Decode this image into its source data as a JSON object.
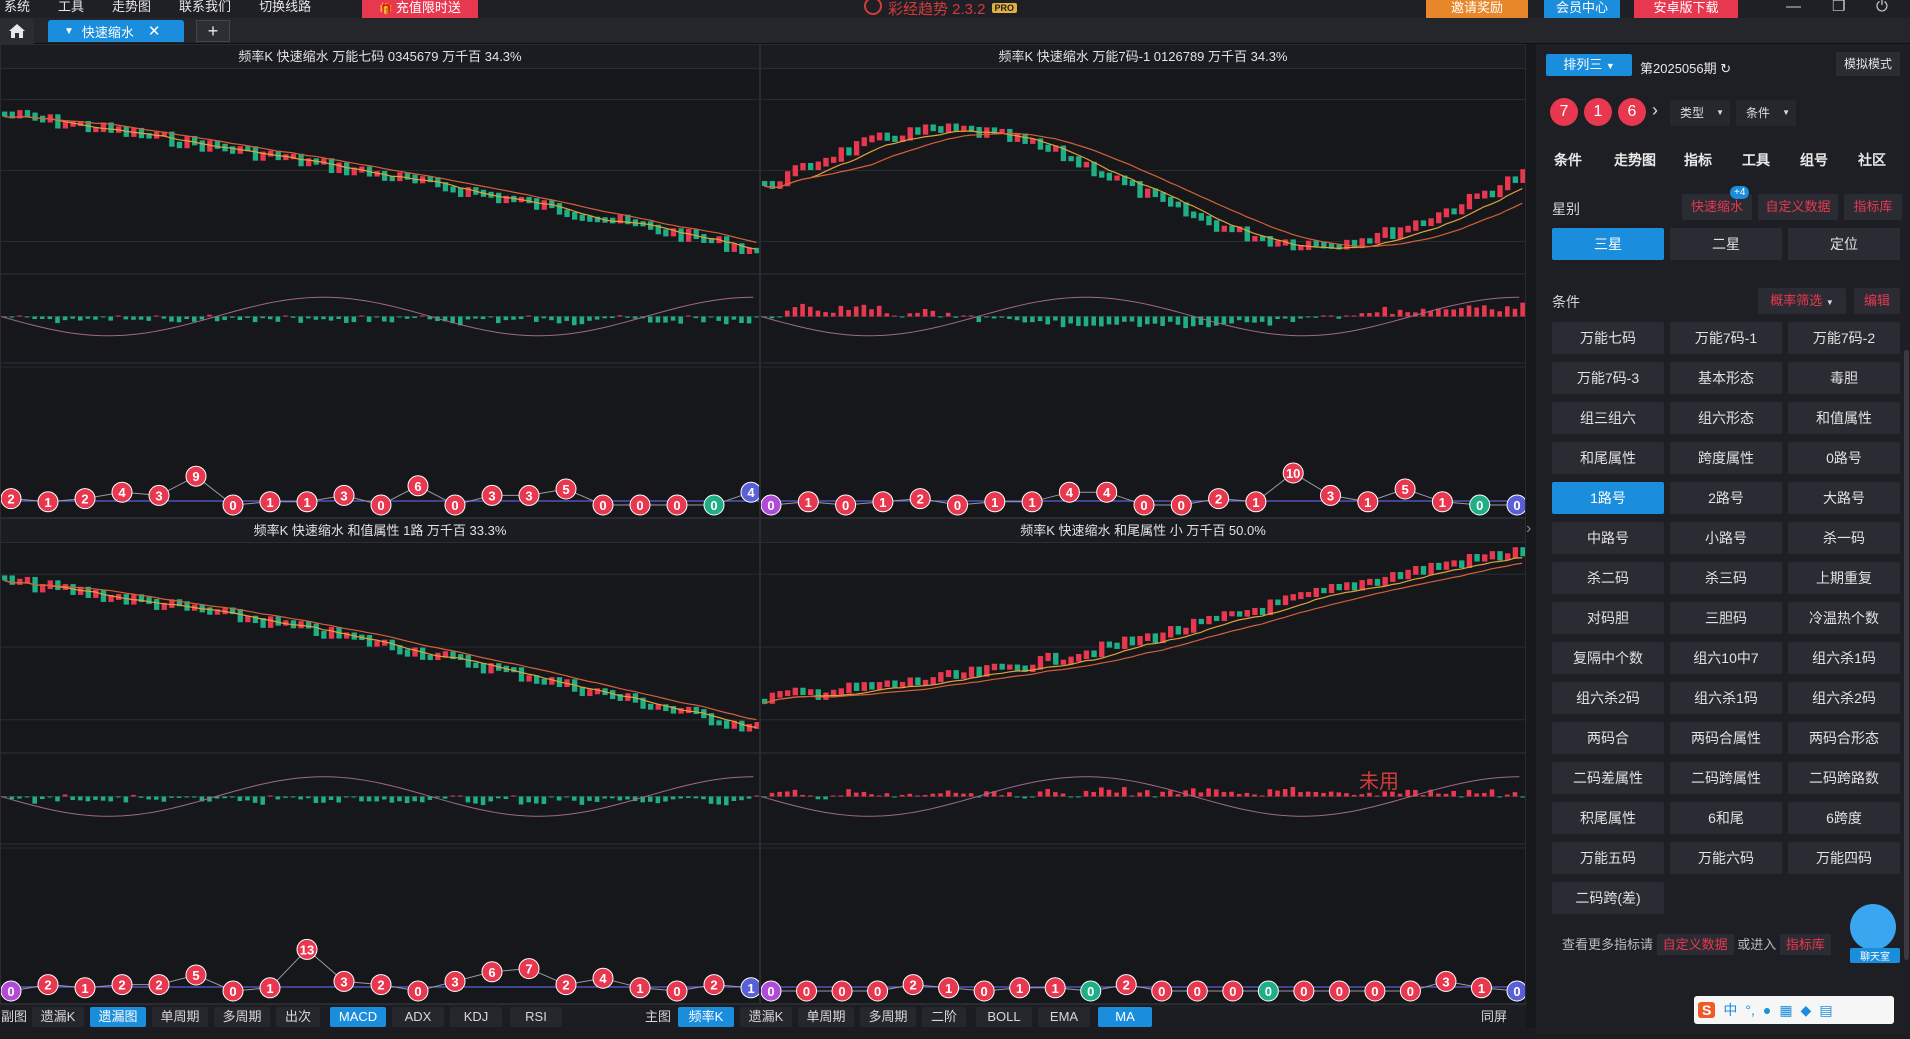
{
  "menu": [
    "系统",
    "工具",
    "走势图",
    "联系我们",
    "切换线路"
  ],
  "recharge": "充值限时送",
  "app_title": "彩经趋势 2.3.2",
  "pro_badge": "PRO",
  "invite": "邀请奖励",
  "member": "会员中心",
  "android": "安卓版下载",
  "tab_label": "快速缩水",
  "panels": [
    {
      "title": "频率K  快速缩水  万能七码 0345679  万千百  34.3%"
    },
    {
      "title": "频率K  快速缩水  万能7码-1 0126789  万千百  34.3%"
    },
    {
      "title": "频率K  快速缩水  和值属性 1路  万千百  33.3%"
    },
    {
      "title": "频率K  快速缩水  和尾属性 小  万千百  50.0%",
      "note": "未用"
    }
  ],
  "bottom_left": [
    "副图",
    "遗漏K",
    "遗漏图",
    "单周期",
    "多周期",
    "出次",
    "MACD",
    "ADX",
    "KDJ",
    "RSI"
  ],
  "bottom_right": [
    "主图",
    "频率K",
    "遗漏K",
    "单周期",
    "多周期",
    "二阶",
    "BOLL",
    "EMA",
    "MA"
  ],
  "fullscreen": "同屏",
  "colors": {
    "up": "#e8384f",
    "down": "#1fae86",
    "ma1": "#e0a23a",
    "ma2": "#d2603a",
    "accent": "#1a8ddc"
  },
  "sidebar": {
    "lottery": "排列三",
    "period": "第2025056期",
    "mock": "模拟模式",
    "draw": [
      "7",
      "1",
      "6"
    ],
    "type_drop": "类型",
    "cond_drop": "条件",
    "tabs": [
      "条件",
      "走势图",
      "指标",
      "工具",
      "组号",
      "社区"
    ],
    "star_label": "星别",
    "star_links": [
      "快速缩水",
      "自定义数据",
      "指标库"
    ],
    "plus_badge": "+4",
    "stars": [
      "三星",
      "二星",
      "定位"
    ],
    "cond_label": "条件",
    "filter": "概率筛选",
    "edit": "编辑",
    "conditions": [
      "万能七码",
      "万能7码-1",
      "万能7码-2",
      "万能7码-3",
      "基本形态",
      "毒胆",
      "组三组六",
      "组六形态",
      "和值属性",
      "和尾属性",
      "跨度属性",
      "0路号",
      "1路号",
      "2路号",
      "大路号",
      "中路号",
      "小路号",
      "杀一码",
      "杀二码",
      "杀三码",
      "上期重复",
      "对码胆",
      "三胆码",
      "冷温热个数",
      "复隔中个数",
      "组六10中7",
      "组六杀1码",
      "组六杀2码",
      "组六杀1码",
      "组六杀2码",
      "两码合",
      "两码合属性",
      "两码合形态",
      "二码差属性",
      "二码跨属性",
      "二码跨路数",
      "积尾属性",
      "6和尾",
      "6跨度",
      "万能五码",
      "万能六码",
      "万能四码",
      "二码跨(差)"
    ],
    "more_text": "查看更多指标请",
    "more_link1": "自定义数据",
    "or_enter": "或进入",
    "more_link2": "指标库",
    "chat": "聊天室"
  },
  "miss_rows": [
    [
      "2",
      "1",
      "2",
      "4",
      "3",
      "9",
      "0",
      "1",
      "1",
      "3",
      "0",
      "6",
      "0",
      "3",
      "3",
      "5",
      "0",
      "0",
      "0",
      "0",
      "4"
    ],
    [
      "0",
      "1",
      "0",
      "1",
      "2",
      "0",
      "1",
      "1",
      "4",
      "4",
      "0",
      "0",
      "2",
      "1",
      "10",
      "3",
      "1",
      "5",
      "1",
      "0",
      "0"
    ],
    [
      "0",
      "2",
      "1",
      "2",
      "2",
      "5",
      "0",
      "1",
      "13",
      "3",
      "2",
      "0",
      "3",
      "6",
      "7",
      "2",
      "4",
      "1",
      "0",
      "2",
      "1"
    ],
    [
      "0",
      "0",
      "0",
      "0",
      "2",
      "1",
      "0",
      "1",
      "1",
      "0",
      "2",
      "0",
      "0",
      "0",
      "0",
      "0",
      "0",
      "0",
      "0",
      "3",
      "1",
      "0"
    ]
  ]
}
